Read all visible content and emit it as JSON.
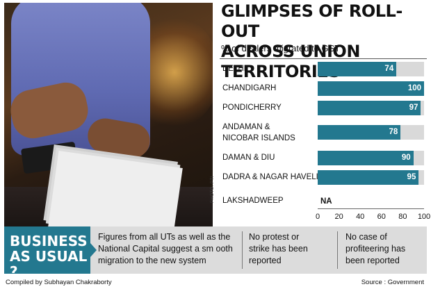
{
  "headline": {
    "line1": "GLIMPSES OF ROLL-OUT",
    "line2": "ACROSS UNION TERRITORIES"
  },
  "photo": {
    "credit": "PHOTO: PTI"
  },
  "chart_data": {
    "type": "bar",
    "orientation": "horizontal",
    "title": "% of dealers migrated to GST",
    "categories": [
      "DELHI",
      "CHANDIGARH",
      "PONDICHERRY",
      "ANDAMAN & NICOBAR ISLANDS",
      "DAMAN & DIU",
      "DADRA & NAGAR HAVELI",
      "LAKSHADWEEP"
    ],
    "category_lines": [
      [
        "DELHI"
      ],
      [
        "CHANDIGARH"
      ],
      [
        "PONDICHERRY"
      ],
      [
        "ANDAMAN &",
        "NICOBAR ISLANDS"
      ],
      [
        "DAMAN & DIU"
      ],
      [
        "DADRA & NAGAR HAVELI"
      ],
      [
        "LAKSHADWEEP"
      ]
    ],
    "values": [
      74,
      100,
      97,
      78,
      90,
      95,
      null
    ],
    "value_labels": [
      "74",
      "100",
      "97",
      "78",
      "90",
      "95",
      "NA"
    ],
    "xlim": [
      0,
      100
    ],
    "xticks": [
      0,
      20,
      40,
      60,
      80,
      100
    ],
    "colors": {
      "bar": "#23788f",
      "track": "#d9d9d9"
    }
  },
  "band": {
    "heading_line1": "BUSINESS",
    "heading_line2": "AS USUAL ?",
    "col1": [
      "Figures from  all UTs as well as the",
      "National Capital  suggest  a sm ooth",
      "migration to the new system"
    ],
    "col2": [
      "No protest or",
      "strike has been",
      "reported"
    ],
    "col3": [
      "No case of",
      "profiteering has",
      "been reported"
    ]
  },
  "footer": {
    "credit": "Compiled by Subhayan Chakraborty",
    "source": "Source : Government"
  }
}
